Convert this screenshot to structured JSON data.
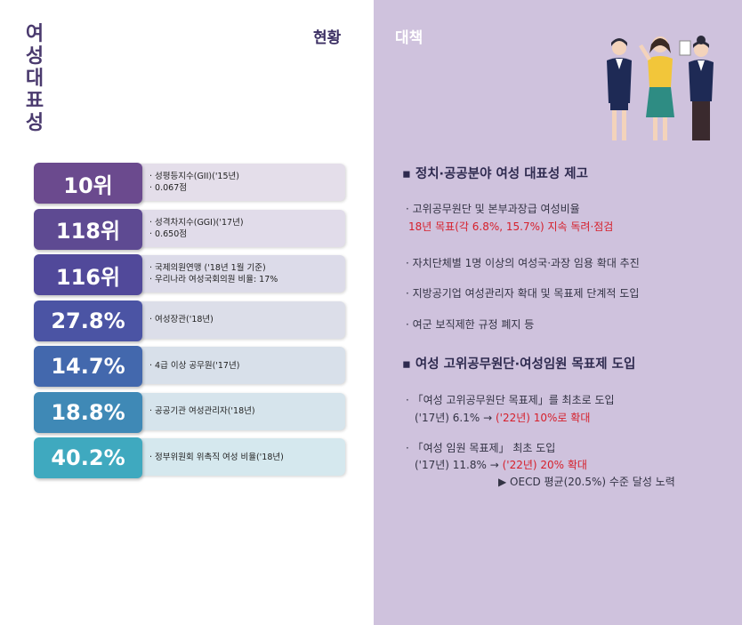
{
  "left": {
    "vertical_title": [
      "여",
      "성",
      "대",
      "표",
      "성"
    ],
    "header": "현황",
    "stats": [
      {
        "value": "10위",
        "lines": [
          "· 성평등지수(GII)('15년)",
          "· 0.067점"
        ],
        "color": "#6b4a8e",
        "desc_bg": "#e4deea"
      },
      {
        "value": "118위",
        "lines": [
          "· 성격차지수(GGI)('17년)",
          "· 0.650점"
        ],
        "color": "#5e4a92",
        "desc_bg": "#e1dcea"
      },
      {
        "value": "116위",
        "lines": [
          "· 국제의원연맹 ('18년 1월 기준)",
          "· 우리나라 여성국회의원 비율: 17%"
        ],
        "color": "#51499a",
        "desc_bg": "#dcdbe9"
      },
      {
        "value": "27.8%",
        "lines": [
          "· 여성장관('18년)"
        ],
        "color": "#4b54a4",
        "desc_bg": "#dcdee9"
      },
      {
        "value": "14.7%",
        "lines": [
          "· 4급 이상 공무원('17년)"
        ],
        "color": "#4368ad",
        "desc_bg": "#d8e0ea"
      },
      {
        "value": "18.8%",
        "lines": [
          "· 공공기관 여성관리자('18년)"
        ],
        "color": "#3f89b6",
        "desc_bg": "#d6e4ec"
      },
      {
        "value": "40.2%",
        "lines": [
          "· 정부위원회 위촉직 여성 비율('18년)"
        ],
        "color": "#3fa9bf",
        "desc_bg": "#d5e8ee"
      }
    ]
  },
  "right": {
    "header": "대책",
    "section1": {
      "title": "▪ 정치·공공분야 여성 대표성 제고",
      "item1": "· 고위공무원단 및 본부과장급 여성비율",
      "item1_red": "18년 목표(각 6.8%, 15.7%) 지속 독려·점검",
      "item2": "· 자치단체별 1명 이상의 여성국·과장 임용 확대 추진",
      "item3": "· 지방공기업 여성관리자 확대 및 목표제 단계적 도입",
      "item4": "· 여군 보직제한 규정 폐지 등"
    },
    "section2": {
      "title": "▪ 여성 고위공무원단·여성임원 목표제 도입",
      "item1": "· 「여성 고위공무원단 목표제」를 최초로 도입",
      "item1_sub_a": "('17년) 6.1% → ",
      "item1_sub_b": "('22년) 10%로 확대",
      "item2": "· 「여성 임원 목표제」 최초 도입",
      "item2_sub_a": "('17년) 11.8% → ",
      "item2_sub_b": "('22년) 20% 확대",
      "item2_note": "▶ OECD 평균(20.5%) 수준 달성 노력"
    }
  }
}
